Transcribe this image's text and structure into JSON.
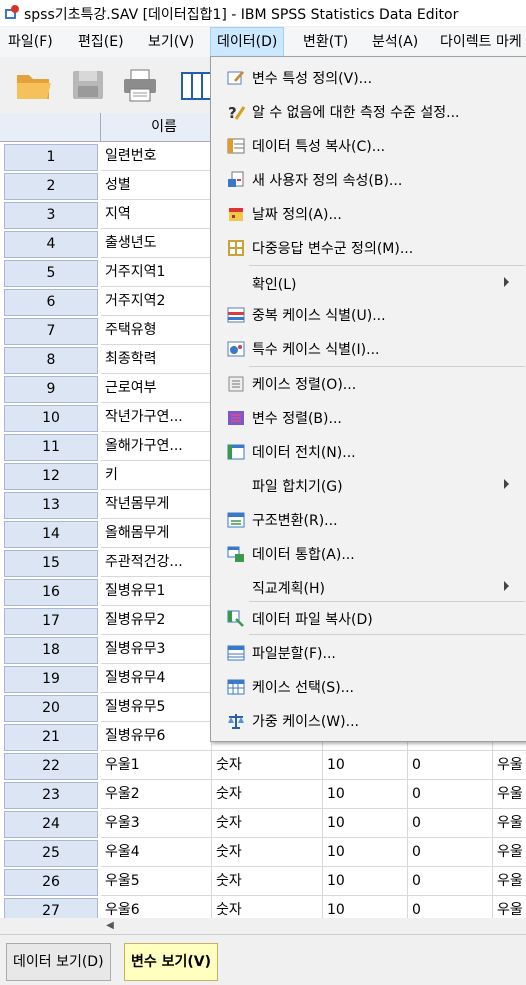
{
  "window": {
    "title": "spss기초특강.SAV [데이터집합1] - IBM SPSS Statistics Data Editor"
  },
  "menubar": {
    "items": [
      {
        "label": "파일(F)"
      },
      {
        "label": "편집(E)"
      },
      {
        "label": "보기(V)"
      },
      {
        "label": "데이터(D)"
      },
      {
        "label": "변환(T)"
      },
      {
        "label": "분석(A)"
      },
      {
        "label": "다이렉트 마케"
      }
    ]
  },
  "toolbar": {
    "icons": [
      "open-folder-icon",
      "save-icon",
      "print-icon",
      "dialog-recall-icon"
    ]
  },
  "grid": {
    "name_header": "이름",
    "rows": [
      {
        "num": "1",
        "name": "일련번호"
      },
      {
        "num": "2",
        "name": "성별"
      },
      {
        "num": "3",
        "name": "지역"
      },
      {
        "num": "4",
        "name": "출생년도"
      },
      {
        "num": "5",
        "name": "거주지역1"
      },
      {
        "num": "6",
        "name": "거주지역2"
      },
      {
        "num": "7",
        "name": "주택유형"
      },
      {
        "num": "8",
        "name": "최종학력"
      },
      {
        "num": "9",
        "name": "근로여부"
      },
      {
        "num": "10",
        "name": "작년가구연..."
      },
      {
        "num": "11",
        "name": "올해가구연..."
      },
      {
        "num": "12",
        "name": "키"
      },
      {
        "num": "13",
        "name": "작년몸무게"
      },
      {
        "num": "14",
        "name": "올해몸무게"
      },
      {
        "num": "15",
        "name": "주관적건강..."
      },
      {
        "num": "16",
        "name": "질병유무1"
      },
      {
        "num": "17",
        "name": "질병유무2"
      },
      {
        "num": "18",
        "name": "질병유무3"
      },
      {
        "num": "19",
        "name": "질병유무4"
      },
      {
        "num": "20",
        "name": "질병유무5"
      },
      {
        "num": "21",
        "name": "질병유무6"
      },
      {
        "num": "22",
        "name": "우울1",
        "type": "숫자",
        "width": "10",
        "decimals": "0",
        "label": "우울"
      },
      {
        "num": "23",
        "name": "우울2",
        "type": "숫자",
        "width": "10",
        "decimals": "0",
        "label": "우울"
      },
      {
        "num": "24",
        "name": "우울3",
        "type": "숫자",
        "width": "10",
        "decimals": "0",
        "label": "우울"
      },
      {
        "num": "25",
        "name": "우울4",
        "type": "숫자",
        "width": "10",
        "decimals": "0",
        "label": "우울"
      },
      {
        "num": "26",
        "name": "우울5",
        "type": "숫자",
        "width": "10",
        "decimals": "0",
        "label": "우울"
      },
      {
        "num": "27",
        "name": "우울6",
        "type": "숫자",
        "width": "10",
        "decimals": "0",
        "label": "우울"
      }
    ]
  },
  "tabs": {
    "data_view": "데이터 보기(D)",
    "variable_view": "변수 보기(V)"
  },
  "data_menu": {
    "items": [
      {
        "label": "변수 특성 정의(V)...",
        "icon": "define-properties-icon"
      },
      {
        "label": "알 수 없음에 대한 측정 수준 설정...",
        "icon": "unknown-measure-icon"
      },
      {
        "label": "데이터 특성 복사(C)...",
        "icon": "copy-properties-icon"
      },
      {
        "label": "새 사용자 정의 속성(B)...",
        "icon": "custom-attribute-icon"
      },
      {
        "label": "날짜 정의(A)...",
        "icon": "calendar-icon"
      },
      {
        "label": "다중응답 변수군 정의(M)...",
        "icon": "multiple-response-icon"
      },
      {
        "label": "확인(L)",
        "submenu": true
      },
      {
        "label": "중복 케이스 식별(U)...",
        "icon": "duplicate-cases-icon"
      },
      {
        "label": "특수 케이스 식별(I)...",
        "icon": "unusual-cases-icon"
      },
      {
        "label": "케이스 정렬(O)...",
        "icon": "sort-cases-icon"
      },
      {
        "label": "변수 정렬(B)...",
        "icon": "sort-variables-icon"
      },
      {
        "label": "데이터 전치(N)...",
        "icon": "transpose-icon"
      },
      {
        "label": "파일 합치기(G)",
        "submenu": true
      },
      {
        "label": "구조변환(R)...",
        "icon": "restructure-icon"
      },
      {
        "label": "데이터 통합(A)...",
        "icon": "aggregate-icon"
      },
      {
        "label": "직교계획(H)",
        "submenu": true
      },
      {
        "label": "데이터 파일 복사(D)",
        "icon": "copy-dataset-icon"
      },
      {
        "label": "파일분할(F)...",
        "icon": "split-file-icon"
      },
      {
        "label": "케이스 선택(S)...",
        "icon": "select-cases-icon"
      },
      {
        "label": "가중 케이스(W)...",
        "icon": "weight-cases-icon"
      }
    ]
  }
}
